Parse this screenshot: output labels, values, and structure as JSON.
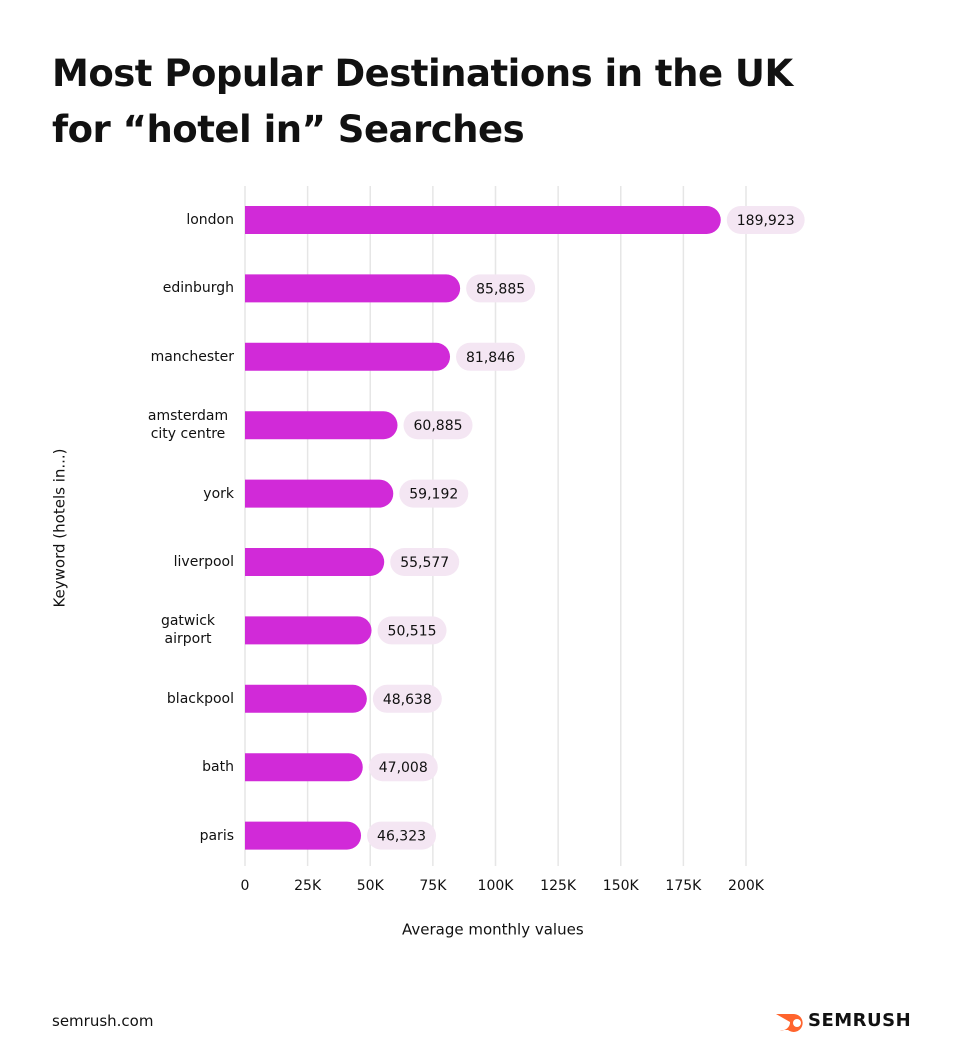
{
  "chart_data": {
    "type": "bar",
    "orientation": "horizontal",
    "title": "Most Popular Destinations in the UK for “hotel in” Searches",
    "x_label": "Average monthly values",
    "y_label": "Keyword (hotels in...)",
    "categories": [
      "london",
      "edinburgh",
      "manchester",
      "amsterdam city centre",
      "york",
      "liverpool",
      "gatwick airport",
      "blackpool",
      "bath",
      "paris"
    ],
    "values": [
      189923,
      85885,
      81846,
      60885,
      59192,
      55577,
      50515,
      48638,
      47008,
      46323
    ],
    "value_labels": [
      "189,923",
      "85,885",
      "81,846",
      "60,885",
      "59,192",
      "55,577",
      "50,515",
      "48,638",
      "47,008",
      "46,323"
    ],
    "color": "#d12ad8",
    "xlim": [
      0,
      200000
    ],
    "xticks": [
      0,
      {
        "value": 25000,
        "label": "25K"
      },
      {
        "value": 50000,
        "label": "50K"
      },
      {
        "value": 75000,
        "label": "75K"
      },
      {
        "value": 100000,
        "label": "100K"
      },
      {
        "value": 125000,
        "label": "125K"
      },
      {
        "value": 150000,
        "label": "150K"
      },
      {
        "value": 175000,
        "label": "175K"
      },
      {
        "value": 200000,
        "label": "200K"
      }
    ],
    "grid": true
  },
  "footer": {
    "source": "semrush.com",
    "brand": "SEMRUSH"
  }
}
